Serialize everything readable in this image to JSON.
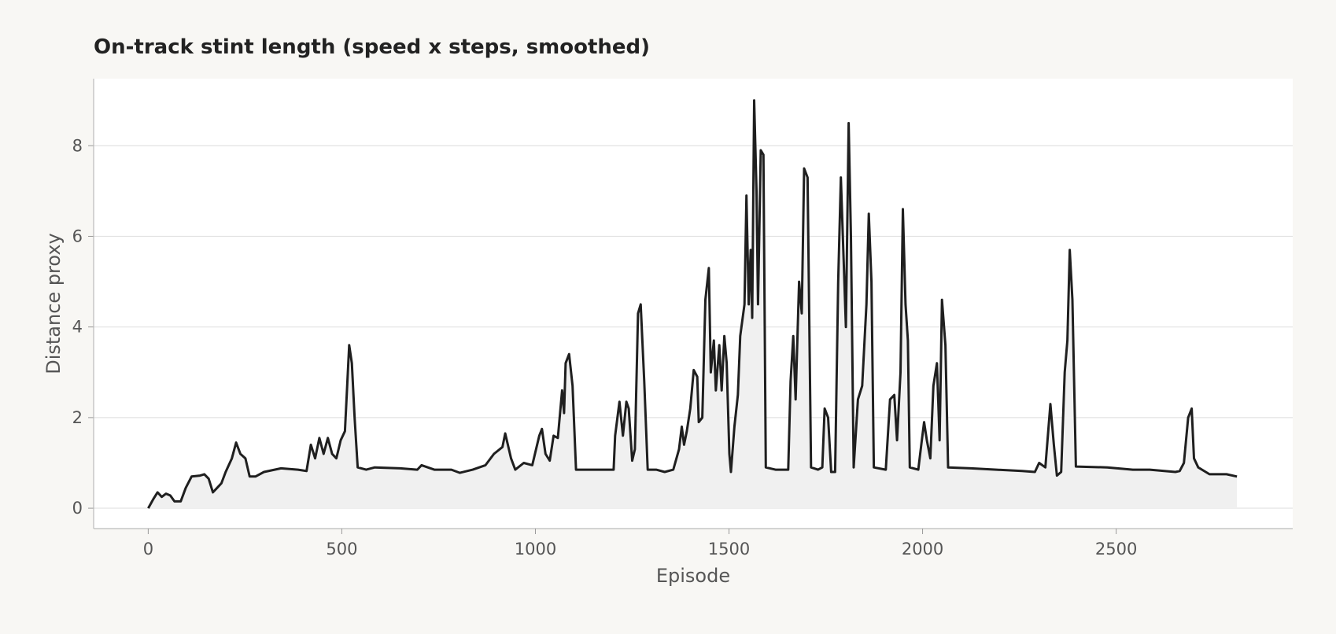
{
  "chart_data": {
    "type": "line",
    "title": "On-track stint length (speed x steps, smoothed)",
    "x_label": "Episode",
    "y_label": "Distance proxy",
    "x": [
      0,
      13,
      24,
      35,
      46,
      57,
      68,
      84,
      97,
      112,
      134,
      145,
      156,
      167,
      178,
      189,
      200,
      216,
      227,
      238,
      251,
      262,
      277,
      299,
      343,
      387,
      409,
      420,
      431,
      442,
      453,
      464,
      475,
      486,
      497,
      508,
      519,
      526,
      533,
      541,
      563,
      585,
      651,
      695,
      706,
      739,
      783,
      805,
      838,
      871,
      893,
      915,
      922,
      937,
      948,
      970,
      992,
      1010,
      1017,
      1026,
      1037,
      1047,
      1058,
      1069,
      1074,
      1078,
      1087,
      1096,
      1105,
      1136,
      1202,
      1206,
      1217,
      1226,
      1235,
      1241,
      1250,
      1257,
      1265,
      1272,
      1281,
      1290,
      1312,
      1334,
      1356,
      1371,
      1378,
      1384,
      1391,
      1400,
      1409,
      1418,
      1422,
      1431,
      1439,
      1448,
      1453,
      1461,
      1466,
      1475,
      1481,
      1488,
      1494,
      1501,
      1505,
      1514,
      1523,
      1529,
      1540,
      1545,
      1551,
      1556,
      1560,
      1565,
      1571,
      1575,
      1582,
      1589,
      1595,
      1620,
      1653,
      1659,
      1666,
      1672,
      1681,
      1688,
      1694,
      1703,
      1712,
      1730,
      1741,
      1747,
      1756,
      1764,
      1774,
      1782,
      1789,
      1796,
      1802,
      1809,
      1815,
      1822,
      1833,
      1844,
      1855,
      1861,
      1868,
      1874,
      1905,
      1916,
      1927,
      1934,
      1943,
      1949,
      1956,
      1962,
      1967,
      1989,
      1998,
      2004,
      2011,
      2020,
      2028,
      2037,
      2044,
      2050,
      2059,
      2066,
      2125,
      2191,
      2257,
      2290,
      2301,
      2317,
      2330,
      2339,
      2347,
      2358,
      2367,
      2374,
      2380,
      2387,
      2396,
      2477,
      2543,
      2587,
      2653,
      2664,
      2675,
      2686,
      2695,
      2701,
      2712,
      2741,
      2785,
      2812
    ],
    "series": [
      {
        "name": "Distance proxy",
        "color": "#1f1f1f",
        "values": [
          0,
          0.2,
          0.35,
          0.25,
          0.32,
          0.28,
          0.15,
          0.15,
          0.45,
          0.7,
          0.72,
          0.75,
          0.65,
          0.35,
          0.45,
          0.55,
          0.8,
          1.1,
          1.45,
          1.2,
          1.1,
          0.7,
          0.7,
          0.8,
          0.88,
          0.85,
          0.82,
          1.4,
          1.1,
          1.55,
          1.2,
          1.55,
          1.2,
          1.1,
          1.5,
          1.7,
          3.6,
          3.2,
          2.0,
          0.9,
          0.85,
          0.9,
          0.88,
          0.85,
          0.95,
          0.85,
          0.85,
          0.78,
          0.85,
          0.95,
          1.2,
          1.35,
          1.65,
          1.1,
          0.85,
          1.0,
          0.95,
          1.6,
          1.75,
          1.2,
          1.05,
          1.6,
          1.55,
          2.6,
          2.1,
          3.2,
          3.4,
          2.7,
          0.85,
          0.85,
          0.85,
          1.6,
          2.35,
          1.6,
          2.35,
          2.2,
          1.05,
          1.3,
          4.3,
          4.5,
          2.8,
          0.85,
          0.85,
          0.8,
          0.85,
          1.3,
          1.8,
          1.4,
          1.7,
          2.2,
          3.05,
          2.9,
          1.9,
          2.0,
          4.6,
          5.3,
          3.0,
          3.7,
          2.6,
          3.6,
          2.6,
          3.8,
          3.2,
          1.2,
          0.8,
          1.8,
          2.5,
          3.8,
          4.5,
          6.9,
          4.5,
          5.7,
          4.2,
          9.0,
          7.0,
          4.5,
          7.9,
          7.8,
          0.9,
          0.85,
          0.85,
          2.8,
          3.8,
          2.4,
          5.0,
          4.3,
          7.5,
          7.3,
          0.9,
          0.85,
          0.9,
          2.2,
          2.0,
          0.8,
          0.8,
          5.0,
          7.3,
          5.5,
          4.0,
          8.5,
          6.0,
          0.9,
          2.4,
          2.7,
          4.5,
          6.5,
          5.0,
          0.9,
          0.85,
          2.4,
          2.5,
          1.5,
          3.0,
          6.6,
          4.5,
          3.7,
          0.9,
          0.85,
          1.5,
          1.9,
          1.5,
          1.1,
          2.7,
          3.2,
          1.5,
          4.6,
          3.6,
          0.9,
          0.88,
          0.85,
          0.82,
          0.8,
          1.0,
          0.9,
          2.3,
          1.4,
          0.72,
          0.8,
          3.0,
          3.7,
          5.7,
          4.6,
          0.92,
          0.9,
          0.85,
          0.85,
          0.8,
          0.82,
          1.0,
          2.0,
          2.2,
          1.1,
          0.9,
          0.75,
          0.75,
          0.7
        ]
      }
    ],
    "area_fill": "#f0f0f0",
    "xlim": [
      -141,
      2956
    ],
    "ylim": [
      -0.45,
      9.48
    ],
    "xticks": [
      0,
      500,
      1000,
      1500,
      2000,
      2500
    ],
    "yticks": [
      0,
      2,
      4,
      6,
      8
    ],
    "grid": true
  }
}
